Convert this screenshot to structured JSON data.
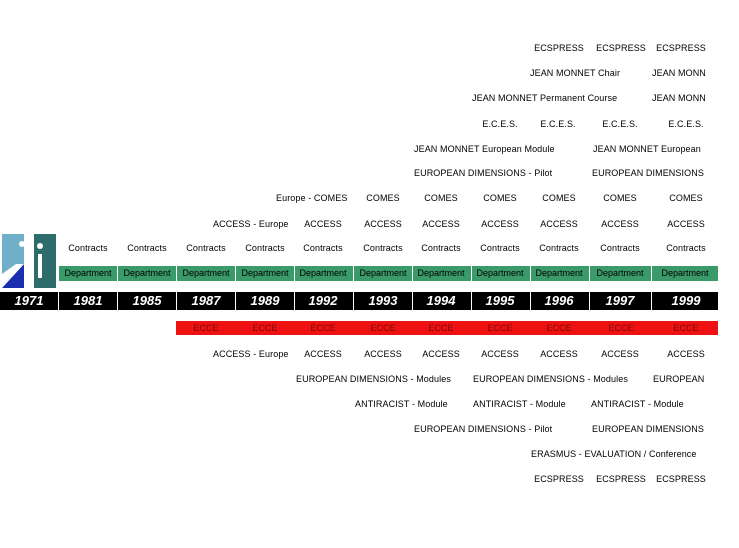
{
  "logo": {
    "name": "institution-logo-icon"
  },
  "years": [
    "1971",
    "1981",
    "1985",
    "1987",
    "1989",
    "1992",
    "1993",
    "1994",
    "1995",
    "1996",
    "1997",
    "1999"
  ],
  "department_label": "Department",
  "ecce_label": "ECCE",
  "rows_above": [
    {
      "id": "ecspress-top",
      "items": [
        "ECSPRESS",
        "ECSPRESS",
        "ECSPRESS"
      ]
    },
    {
      "id": "jean-monnet-chair",
      "items": [
        "JEAN MONNET Chair",
        "JEAN MONN"
      ]
    },
    {
      "id": "jean-monnet-permanent",
      "items": [
        "JEAN MONNET Permanent Course",
        "JEAN MONN"
      ]
    },
    {
      "id": "eces",
      "items": [
        "E.C.E.S.",
        "E.C.E.S.",
        "E.C.E.S.",
        "E.C.E.S."
      ]
    },
    {
      "id": "jean-monnet-module",
      "items": [
        "JEAN MONNET European Module",
        "JEAN MONNET European"
      ]
    },
    {
      "id": "european-dimensions-pilot-top",
      "items": [
        "EUROPEAN  DIMENSIONS - Pilot",
        "EUROPEAN  DIMENSIONS"
      ]
    },
    {
      "id": "comes",
      "items": [
        "Europe - COMES",
        "COMES",
        "COMES",
        "COMES",
        "COMES",
        "COMES",
        "COMES"
      ]
    },
    {
      "id": "access-top",
      "items": [
        "ACCESS - Europe",
        "ACCESS",
        "ACCESS",
        "ACCESS",
        "ACCESS",
        "ACCESS",
        "ACCESS",
        "ACCESS"
      ]
    },
    {
      "id": "contracts",
      "items": [
        "Contracts",
        "Contracts",
        "Contracts",
        "Contracts",
        "Contracts",
        "Contracts",
        "Contracts",
        "Contracts",
        "Contracts",
        "Contracts",
        "Contracts"
      ]
    }
  ],
  "rows_below": [
    {
      "id": "access-bottom",
      "items": [
        "ACCESS - Europe",
        "ACCESS",
        "ACCESS",
        "ACCESS",
        "ACCESS",
        "ACCESS",
        "ACCESS",
        "ACCESS"
      ]
    },
    {
      "id": "european-dimensions-modules",
      "items": [
        "EUROPEAN DIMENSIONS - Modules",
        "EUROPEAN DIMENSIONS - Modules",
        "EUROPEAN"
      ]
    },
    {
      "id": "antiracist",
      "items": [
        "ANTIRACIST - Module",
        "ANTIRACIST - Module",
        "ANTIRACIST - Module"
      ]
    },
    {
      "id": "european-dimensions-pilot-bottom",
      "items": [
        "EUROPEAN  DIMENSIONS - Pilot",
        "EUROPEAN  DIMENSIONS"
      ]
    },
    {
      "id": "erasmus",
      "items": [
        "ERASMUS -  EVALUATION / Conference"
      ]
    },
    {
      "id": "ecspress-bottom",
      "items": [
        "ECSPRESS",
        "ECSPRESS",
        "ECSPRESS"
      ]
    }
  ],
  "colors": {
    "department_band": "#3a9a6a",
    "year_band": "#000000",
    "ecce_band": "#ee1111",
    "ecce_text": "#7a0a0a"
  }
}
